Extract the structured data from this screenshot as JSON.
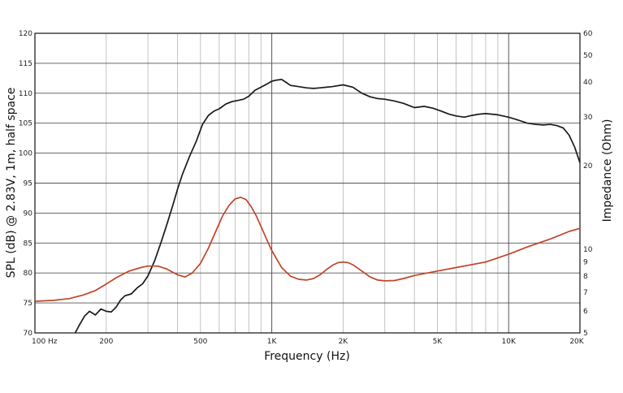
{
  "chart_data": {
    "type": "line",
    "xlabel": "Frequency (Hz)",
    "ylabel_left": "SPL (dB) @ 2.83V, 1m, half space",
    "ylabel_right": "Impedance (Ohm)",
    "x_scale": "log",
    "xlim": [
      100,
      20000
    ],
    "ylim_left": [
      70,
      120
    ],
    "ylim_right": [
      5,
      60
    ],
    "y_right_scale": "log",
    "grid": true,
    "x_ticks": [
      {
        "value": 100,
        "label": "100  Hz"
      },
      {
        "value": 200,
        "label": "200"
      },
      {
        "value": 500,
        "label": "500"
      },
      {
        "value": 1000,
        "label": "1K"
      },
      {
        "value": 2000,
        "label": "2K"
      },
      {
        "value": 5000,
        "label": "5K"
      },
      {
        "value": 10000,
        "label": "10K"
      },
      {
        "value": 20000,
        "label": "20K"
      }
    ],
    "y_left_ticks": [
      {
        "value": 70,
        "label": "70"
      },
      {
        "value": 75,
        "label": "75"
      },
      {
        "value": 80,
        "label": "80"
      },
      {
        "value": 85,
        "label": "85"
      },
      {
        "value": 90,
        "label": "90"
      },
      {
        "value": 95,
        "label": "95"
      },
      {
        "value": 100,
        "label": "100"
      },
      {
        "value": 105,
        "label": "105"
      },
      {
        "value": 110,
        "label": "110"
      },
      {
        "value": 115,
        "label": "115"
      },
      {
        "value": 120,
        "label": "120"
      }
    ],
    "y_right_ticks": [
      {
        "value": 5,
        "label": "5"
      },
      {
        "value": 6,
        "label": "6"
      },
      {
        "value": 7,
        "label": "7"
      },
      {
        "value": 8,
        "label": "8"
      },
      {
        "value": 9,
        "label": "9"
      },
      {
        "value": 10,
        "label": "10"
      },
      {
        "value": 20,
        "label": "20"
      },
      {
        "value": 30,
        "label": "30"
      },
      {
        "value": 40,
        "label": "40"
      },
      {
        "value": 50,
        "label": "50"
      },
      {
        "value": 60,
        "label": "60"
      }
    ],
    "series": [
      {
        "axis": "left",
        "color": "#1a1a1a",
        "x": [
          148,
          155,
          162,
          170,
          180,
          190,
          200,
          210,
          220,
          230,
          240,
          255,
          270,
          285,
          300,
          320,
          340,
          360,
          380,
          400,
          420,
          450,
          480,
          510,
          540,
          570,
          600,
          640,
          680,
          720,
          760,
          800,
          850,
          900,
          950,
          1000,
          1050,
          1100,
          1150,
          1200,
          1300,
          1400,
          1500,
          1600,
          1700,
          1800,
          2000,
          2200,
          2400,
          2600,
          2800,
          3000,
          3300,
          3600,
          4000,
          4400,
          4800,
          5200,
          5600,
          6000,
          6500,
          7000,
          7500,
          8000,
          9000,
          10000,
          11000,
          12000,
          13000,
          14000,
          15000,
          16000,
          17000,
          18000,
          19000,
          20000
        ],
        "y": [
          70,
          71.5,
          72.8,
          73.6,
          73,
          74,
          73.6,
          73.5,
          74.3,
          75.5,
          76.2,
          76.5,
          77.5,
          78.2,
          79.5,
          82,
          85,
          88,
          91,
          94,
          96.5,
          99.5,
          102,
          104.8,
          106.3,
          107,
          107.4,
          108.2,
          108.6,
          108.8,
          109,
          109.5,
          110.5,
          111,
          111.5,
          112,
          112.2,
          112.3,
          111.8,
          111.3,
          111.1,
          110.9,
          110.8,
          110.9,
          111,
          111.1,
          111.4,
          111,
          110,
          109.4,
          109.1,
          109,
          108.7,
          108.3,
          107.6,
          107.8,
          107.5,
          107,
          106.5,
          106.2,
          106,
          106.3,
          106.5,
          106.6,
          106.4,
          106,
          105.5,
          105,
          104.8,
          104.7,
          104.8,
          104.6,
          104.2,
          103,
          101,
          98.4
        ]
      },
      {
        "axis": "right",
        "color": "#c0442a",
        "x": [
          100,
          120,
          140,
          160,
          180,
          200,
          220,
          250,
          280,
          300,
          330,
          360,
          400,
          430,
          460,
          500,
          540,
          580,
          620,
          660,
          700,
          740,
          780,
          820,
          860,
          900,
          950,
          1000,
          1100,
          1200,
          1300,
          1400,
          1500,
          1600,
          1700,
          1800,
          1900,
          2000,
          2100,
          2200,
          2400,
          2600,
          2800,
          3000,
          3300,
          3600,
          4000,
          5000,
          6000,
          8000,
          10000,
          12000,
          15000,
          18000,
          20000
        ],
        "y": [
          6.5,
          6.55,
          6.65,
          6.85,
          7.1,
          7.5,
          7.9,
          8.35,
          8.6,
          8.7,
          8.7,
          8.5,
          8.1,
          7.95,
          8.2,
          8.9,
          10.1,
          11.6,
          13.2,
          14.4,
          15.2,
          15.4,
          15.1,
          14.2,
          13.2,
          12.1,
          10.9,
          9.9,
          8.6,
          8.0,
          7.8,
          7.75,
          7.85,
          8.1,
          8.45,
          8.75,
          8.95,
          9.0,
          8.95,
          8.8,
          8.35,
          7.95,
          7.75,
          7.7,
          7.72,
          7.85,
          8.05,
          8.35,
          8.6,
          9.0,
          9.6,
          10.2,
          10.9,
          11.6,
          11.9
        ]
      }
    ]
  }
}
